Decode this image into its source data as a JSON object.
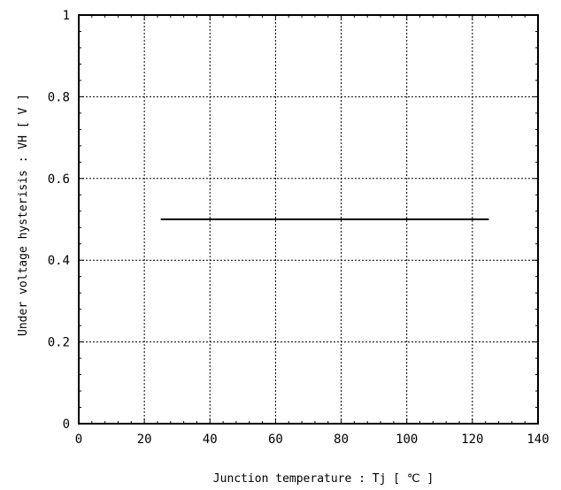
{
  "chart_data": {
    "type": "line",
    "xlabel": "Junction temperature : Tj [ ℃ ]",
    "ylabel": "Under voltage hysterisis : VH [ V ]",
    "xlim": [
      0,
      140
    ],
    "ylim": [
      0,
      1
    ],
    "x_ticks": [
      "0",
      "20",
      "40",
      "60",
      "80",
      "100",
      "120",
      "140"
    ],
    "y_ticks": [
      "0",
      "0.2",
      "0.4",
      "0.6",
      "0.8",
      "1"
    ],
    "grid": true,
    "series": [
      {
        "x": [
          25,
          125
        ],
        "y": [
          0.5,
          0.5
        ],
        "color": "#000000"
      }
    ]
  }
}
